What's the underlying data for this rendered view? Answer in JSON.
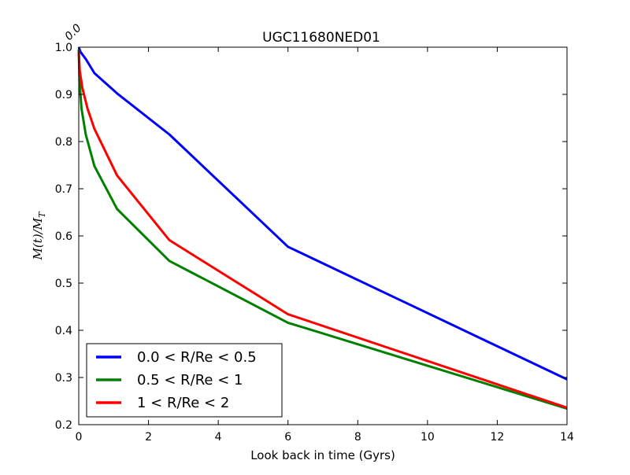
{
  "chart_data": {
    "type": "line",
    "title": "UGC11680NED01",
    "xlabel": "Look back in time (Gyrs)",
    "ylabel": "M(t)/M_T",
    "ylabel_parts": {
      "m": "M",
      "t": "(t)/",
      "mt": "M",
      "sub": "T"
    },
    "xlim": [
      0,
      14
    ],
    "ylim": [
      0.2,
      1.0
    ],
    "xticks": [
      "0",
      "2",
      "4",
      "6",
      "8",
      "10",
      "12",
      "14"
    ],
    "yticks": [
      "0.2",
      "0.3",
      "0.4",
      "0.5",
      "0.6",
      "0.7",
      "0.8",
      "0.9",
      "1.0"
    ],
    "top_tick_labels": [
      "0.0"
    ],
    "legend_position": "lower-left",
    "series": [
      {
        "name": "0.0 < R/Re < 0.5",
        "color": "#0000ff",
        "x": [
          0,
          0.05,
          0.2,
          0.45,
          1.1,
          2.6,
          6.0,
          14.0
        ],
        "y": [
          1.0,
          0.99,
          0.975,
          0.945,
          0.902,
          0.815,
          0.577,
          0.296
        ]
      },
      {
        "name": "0.5 < R/Re < 1",
        "color": "#008000",
        "x": [
          0,
          0.02,
          0.08,
          0.2,
          0.45,
          1.1,
          2.6,
          6.0,
          14.0
        ],
        "y": [
          0.995,
          0.93,
          0.87,
          0.815,
          0.748,
          0.657,
          0.547,
          0.416,
          0.234
        ]
      },
      {
        "name": "1 < R/Re < 2",
        "color": "#ff0000",
        "x": [
          0,
          0.03,
          0.1,
          0.25,
          0.45,
          1.1,
          2.6,
          6.0,
          14.0
        ],
        "y": [
          0.99,
          0.95,
          0.915,
          0.87,
          0.827,
          0.728,
          0.591,
          0.434,
          0.236
        ]
      }
    ]
  }
}
